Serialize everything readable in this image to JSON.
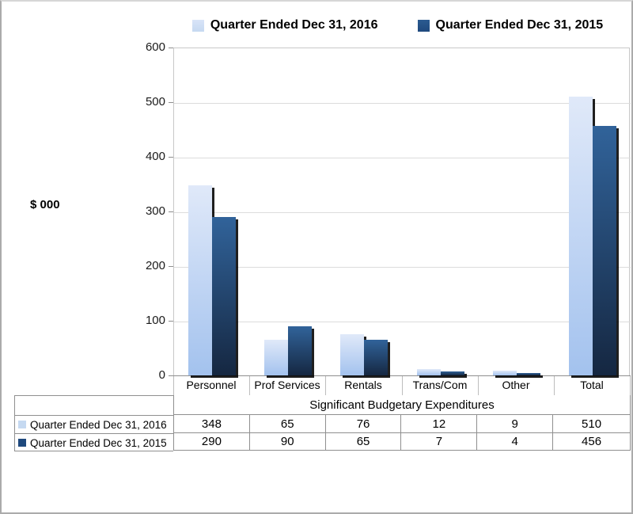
{
  "chart_data": {
    "type": "bar",
    "title": "",
    "xlabel": "Significant Budgetary Expenditures",
    "ylabel": "$ 000",
    "ylim": [
      0,
      600
    ],
    "ytick_interval": 100,
    "grid": true,
    "legend_position": "top",
    "data_table_shown": true,
    "categories": [
      "Personnel",
      "Prof Services",
      "Rentals",
      "Trans/Com",
      "Other",
      "Total"
    ],
    "series": [
      {
        "name": "Quarter Ended Dec 31, 2016",
        "values": [
          348,
          65,
          76,
          12,
          9,
          510
        ],
        "key_color": "#c5d9f1",
        "gradient_top": "#e0e9f9",
        "gradient_bottom": "#a3c2ee"
      },
      {
        "name": "Quarter Ended Dec 31, 2015",
        "values": [
          290,
          90,
          65,
          7,
          4,
          456
        ],
        "key_color": "#1f497d",
        "gradient_top": "#31639a",
        "gradient_bottom": "#152741"
      }
    ],
    "colors": {
      "gridline": "#dcdcdc",
      "axis": "#8f8f8f",
      "table_border": "#8f8f8f",
      "bar_shadow": "#000000"
    }
  }
}
